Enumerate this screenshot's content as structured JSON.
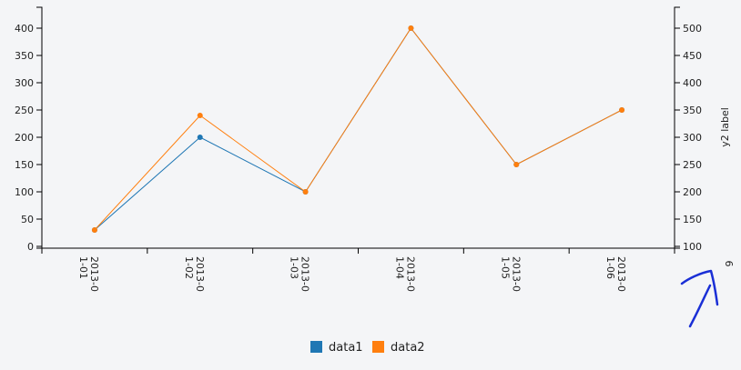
{
  "chart_data": {
    "type": "line",
    "categories": [
      "2013-01-01",
      "2013-01-02",
      "2013-01-03",
      "2013-01-04",
      "2013-01-05",
      "2013-01-06"
    ],
    "x_tick_labels": [
      [
        "2013-0",
        "1-01"
      ],
      [
        "2013-0",
        "1-02"
      ],
      [
        "2013-0",
        "1-03"
      ],
      [
        "2013-0",
        "1-04"
      ],
      [
        "2013-0",
        "1-05"
      ],
      [
        "2013-0",
        "1-06"
      ]
    ],
    "series": [
      {
        "name": "data1",
        "axis": "y",
        "color": "#1f77b4",
        "values": [
          30,
          200,
          100,
          400,
          150,
          250
        ]
      },
      {
        "name": "data2",
        "axis": "y2",
        "color": "#ff7f0e",
        "values": [
          130,
          340,
          200,
          500,
          250,
          350
        ]
      }
    ],
    "y_axis": {
      "range": [
        0,
        400
      ],
      "ticks": [
        0,
        50,
        100,
        150,
        200,
        250,
        300,
        350,
        400
      ]
    },
    "y2_axis": {
      "label": "y2 label",
      "range": [
        100,
        500
      ],
      "ticks": [
        100,
        150,
        200,
        250,
        300,
        350,
        400,
        450,
        500
      ]
    },
    "y2_extra_tick_label": "6",
    "grid": false,
    "legend": {
      "position": "bottom-center",
      "items": [
        "data1",
        "data2"
      ]
    },
    "annotation": {
      "type": "hand-drawn arrow",
      "color": "#1a2fd6"
    }
  }
}
